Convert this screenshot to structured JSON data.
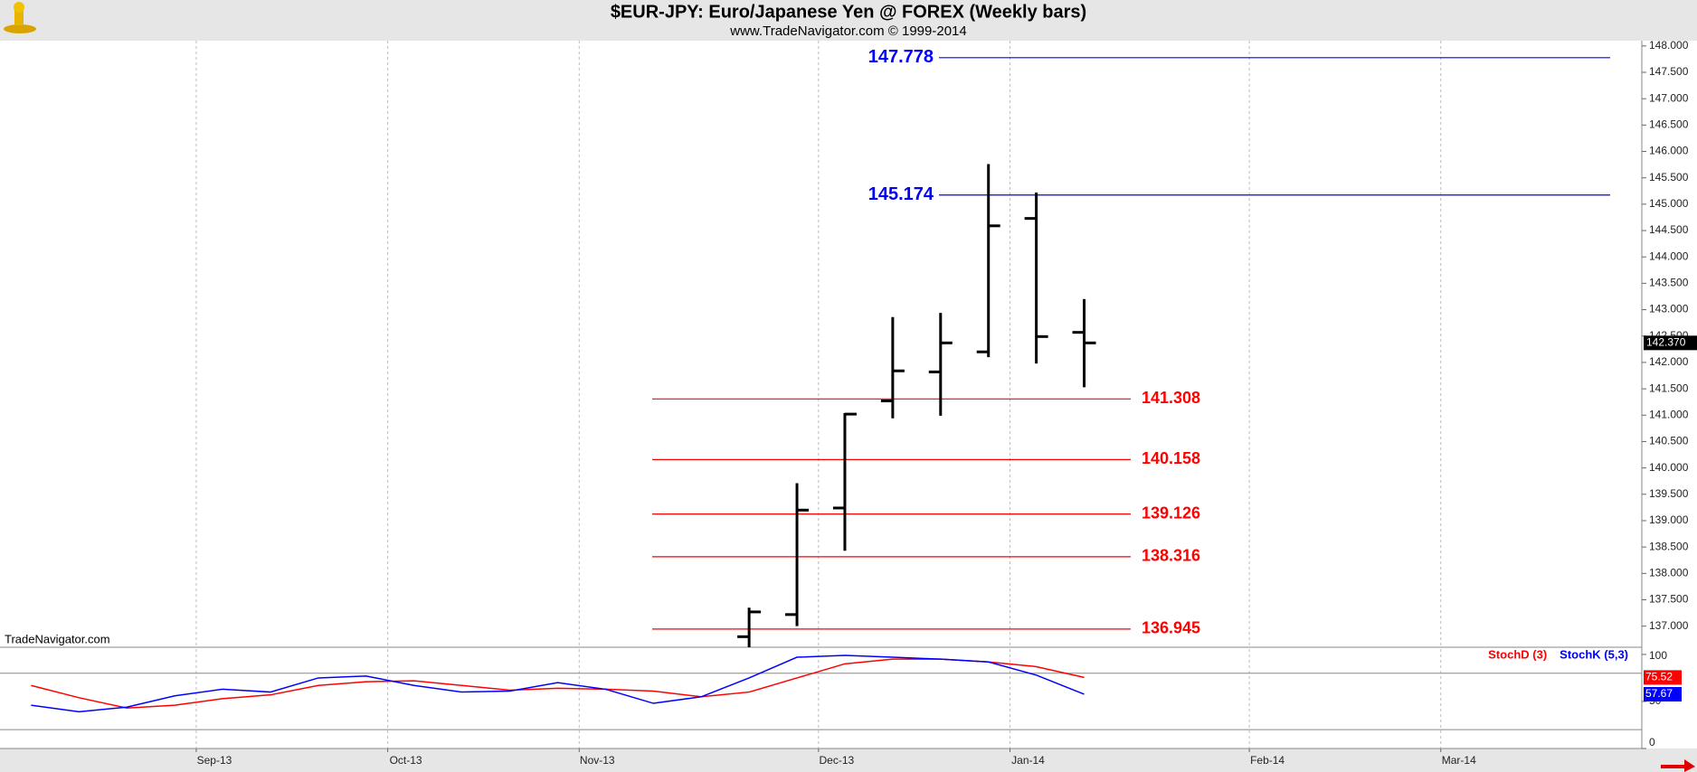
{
  "chart_data": [
    {
      "type": "ohlc",
      "title": "$EUR-JPY:  Euro/Japanese Yen @ FOREX  (Weekly bars)",
      "subtitle": "www.TradeNavigator.com © 1999-2014",
      "xlim": [
        0,
        34.3
      ],
      "xticks": [
        {
          "value": 4.1,
          "label": "Sep-13"
        },
        {
          "value": 8.1,
          "label": "Oct-13"
        },
        {
          "value": 12.1,
          "label": "Nov-13"
        },
        {
          "value": 17.1,
          "label": "Dec-13"
        },
        {
          "value": 21.1,
          "label": "Jan-14"
        },
        {
          "value": 26.1,
          "label": "Feb-14"
        },
        {
          "value": 30.1,
          "label": "Mar-14"
        }
      ],
      "ylim": [
        136.6,
        148.1
      ],
      "yticks": [
        {
          "value": 137,
          "label": "137.000"
        },
        {
          "value": 137.5,
          "label": "137.500"
        },
        {
          "value": 138,
          "label": "138.000"
        },
        {
          "value": 138.5,
          "label": "138.500"
        },
        {
          "value": 139,
          "label": "139.000"
        },
        {
          "value": 139.5,
          "label": "139.500"
        },
        {
          "value": 140,
          "label": "140.000"
        },
        {
          "value": 140.5,
          "label": "140.500"
        },
        {
          "value": 141,
          "label": "141.000"
        },
        {
          "value": 141.5,
          "label": "141.500"
        },
        {
          "value": 142,
          "label": "142.000"
        },
        {
          "value": 142.5,
          "label": "142.500"
        },
        {
          "value": 143,
          "label": "143.000"
        },
        {
          "value": 143.5,
          "label": "143.500"
        },
        {
          "value": 144,
          "label": "144.000"
        },
        {
          "value": 144.5,
          "label": "144.500"
        },
        {
          "value": 145,
          "label": "145.000"
        },
        {
          "value": 145.5,
          "label": "145.500"
        },
        {
          "value": 146,
          "label": "146.000"
        },
        {
          "value": 146.5,
          "label": "146.500"
        },
        {
          "value": 147,
          "label": "147.000"
        },
        {
          "value": 147.5,
          "label": "147.500"
        },
        {
          "value": 148,
          "label": "148.000"
        }
      ],
      "x": [
        15.65,
        16.65,
        17.65,
        18.65,
        19.65,
        20.65,
        21.65,
        22.65
      ],
      "open": [
        136.8,
        137.22,
        139.24,
        141.27,
        141.82,
        142.2,
        144.73,
        142.57
      ],
      "high": [
        137.35,
        139.71,
        141.04,
        142.86,
        142.94,
        145.76,
        145.22,
        143.2
      ],
      "low": [
        136.5,
        137.0,
        138.43,
        140.94,
        140.99,
        142.1,
        141.98,
        141.53
      ],
      "close": [
        137.27,
        139.2,
        141.02,
        141.84,
        142.37,
        144.59,
        142.49,
        142.37
      ],
      "color": "#000000",
      "last_price_label": "142.370",
      "resistance_levels": {
        "color": "#0000ff",
        "values": [
          147.778,
          145.174
        ]
      },
      "support_levels": {
        "color": "#ff0000",
        "values": [
          141.308,
          140.158,
          139.126,
          138.316,
          136.945
        ]
      },
      "watermark": "TradeNavigator.com",
      "grid": true
    },
    {
      "type": "line",
      "ylim": [
        0,
        105.7
      ],
      "yticks": [
        0,
        50,
        100
      ],
      "ref_lines": [
        20,
        80
      ],
      "x": [
        0.65,
        1.65,
        2.65,
        3.65,
        4.65,
        5.65,
        6.65,
        7.65,
        8.65,
        9.65,
        10.65,
        11.65,
        12.65,
        13.65,
        14.65,
        15.65,
        16.65,
        17.65,
        18.65,
        19.65,
        20.65,
        21.65,
        22.65
      ],
      "series": [
        {
          "name": "StochD (3)",
          "color": "#ff0000",
          "values": [
            67,
            54,
            43,
            46,
            53,
            57,
            67,
            71,
            72,
            67,
            62,
            64,
            63,
            61,
            55,
            60,
            75,
            90,
            95,
            95,
            92,
            87,
            75.52
          ]
        },
        {
          "name": "StochK (5,3)",
          "color": "#0000ff",
          "values": [
            46,
            39,
            44,
            56,
            63,
            60,
            75,
            77,
            67,
            60,
            61,
            70,
            63,
            48,
            55,
            75,
            97,
            99,
            97,
            95,
            92,
            78,
            57.67
          ]
        }
      ]
    }
  ]
}
